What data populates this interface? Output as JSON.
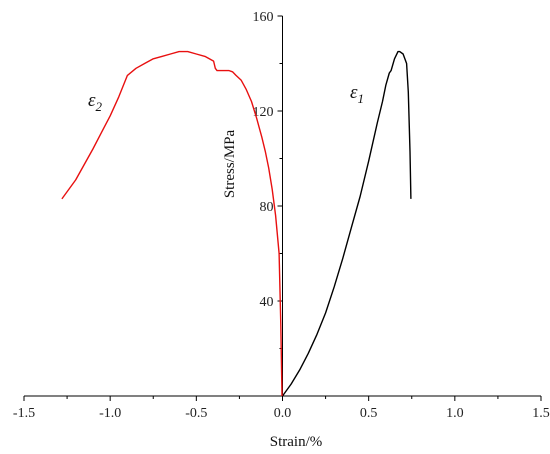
{
  "chart_data": {
    "type": "line",
    "title": "",
    "xlabel": "Strain/%",
    "ylabel": "Stress/MPa",
    "xlim": [
      -1.5,
      1.5
    ],
    "ylim": [
      0,
      160
    ],
    "xticks": [
      -1.5,
      -1.0,
      -0.5,
      0.0,
      0.5,
      1.0,
      1.5
    ],
    "xtick_labels": [
      "-1.5",
      "-1.0",
      "-0.5",
      "0.0",
      "0.5",
      "1.0",
      "1.5"
    ],
    "yticks": [
      40,
      80,
      120,
      160
    ],
    "ytick_labels": [
      "40",
      "80",
      "120",
      "160"
    ],
    "grid": false,
    "series": [
      {
        "name": "ε1",
        "label_main": "ε",
        "label_sub": "1",
        "color": "#000000",
        "x": [
          0.0,
          0.05,
          0.1,
          0.15,
          0.2,
          0.25,
          0.3,
          0.35,
          0.4,
          0.45,
          0.5,
          0.55,
          0.58,
          0.6,
          0.62,
          0.63,
          0.65,
          0.67,
          0.68,
          0.7,
          0.72,
          0.73,
          0.74,
          0.745
        ],
        "y": [
          0,
          5,
          11,
          18,
          26,
          35,
          46,
          58,
          71,
          84,
          99,
          115,
          124,
          131,
          136,
          137,
          142,
          145,
          145,
          144,
          140,
          128,
          103,
          83
        ]
      },
      {
        "name": "ε2",
        "label_main": "ε",
        "label_sub": "2",
        "color": "#e81010",
        "x": [
          -0.003,
          -0.005,
          -0.01,
          -0.02,
          -0.04,
          -0.06,
          -0.08,
          -0.1,
          -0.12,
          -0.15,
          -0.18,
          -0.21,
          -0.24,
          -0.27,
          -0.29,
          -0.31,
          -0.33,
          -0.38,
          -0.39,
          -0.4,
          -0.45,
          -0.5,
          -0.55,
          -0.6,
          -0.65,
          -0.7,
          -0.75,
          -0.8,
          -0.85,
          -0.9,
          -0.95,
          -1.0,
          -1.05,
          -1.1,
          -1.2,
          -1.28
        ],
        "y": [
          0,
          10,
          30,
          60,
          76,
          87,
          96,
          103,
          109,
          117,
          124,
          129,
          133,
          135,
          136.5,
          137,
          137,
          137,
          138,
          141,
          143,
          144,
          145,
          145,
          144,
          143,
          142,
          140,
          138,
          135,
          126,
          118,
          111,
          104,
          91,
          83
        ]
      }
    ]
  }
}
